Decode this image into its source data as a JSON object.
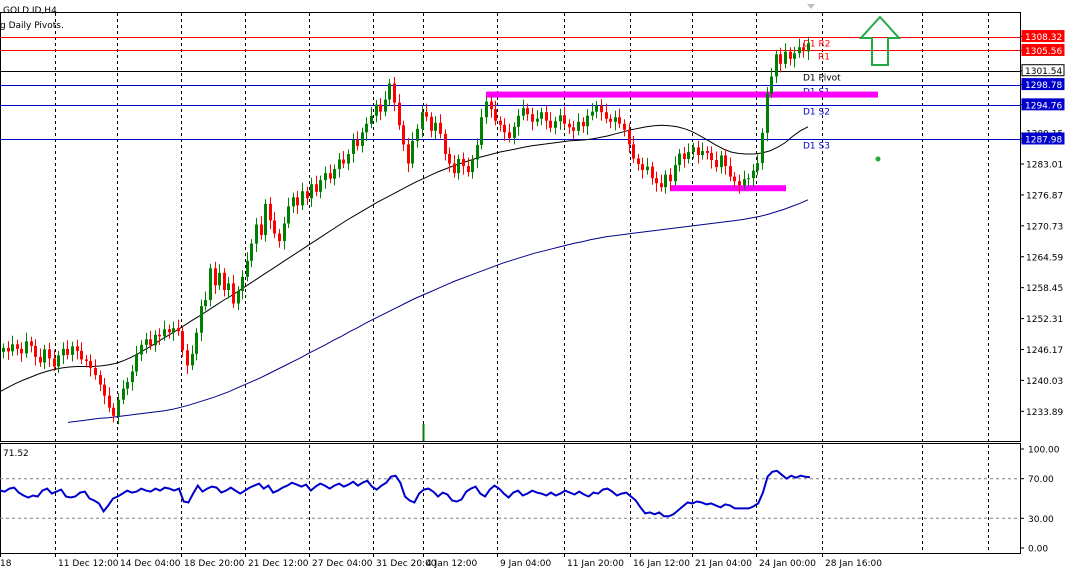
{
  "window": {
    "symbol_label": "GOLD.ID,H4",
    "indicator_label": "g Daily Pivots."
  },
  "colors": {
    "bull": "#008000",
    "bear": "#ff0000",
    "ma_fast": "#000000",
    "ma_slow": "#00008b",
    "pivot_resistance": "#ff0000",
    "pivot_support": "#0000cd",
    "pivot": "#000000",
    "zone": "#ff00ff",
    "rsi": "#0000cd",
    "arrow": "#22aa44",
    "dot": "#22aa44"
  },
  "chart_data": [
    {
      "type": "candlestick",
      "title": "GOLD.ID,H4",
      "ylim": [
        1228,
        1313
      ],
      "yticks": [
        "1308.32",
        "1305.56",
        "1301.54",
        "1298.78",
        "1294.76",
        "1289.15",
        "1287.98",
        "1283.01",
        "1276.87",
        "1270.73",
        "1264.59",
        "1258.45",
        "1252.31",
        "1246.17",
        "1240.03",
        "1233.89"
      ],
      "xticks": [
        "18",
        "11 Dec 12:00",
        "14 Dec 04:00",
        "18 Dec 20:00",
        "21 Dec 12:00",
        "27 Dec 04:00",
        "31 Dec 20:00",
        "4 Jan 12:00",
        "9 Jan 04:00",
        "11 Jan 20:00",
        "16 Jan 12:00",
        "21 Jan 04:00",
        "24 Jan 00:00",
        "28 Jan 16:00"
      ],
      "pivots": [
        {
          "name": "D1 R2",
          "value": 1308.32,
          "kind": "resistance"
        },
        {
          "name": "R1",
          "value": 1305.56,
          "kind": "resistance"
        },
        {
          "name": "D1 Pivot",
          "value": 1301.54,
          "kind": "pivot"
        },
        {
          "name": "D1 S1",
          "value": 1298.78,
          "kind": "support"
        },
        {
          "name": "D1 S2",
          "value": 1294.76,
          "kind": "support"
        },
        {
          "name": "D1 S3",
          "value": 1287.98,
          "kind": "support"
        }
      ],
      "zones": [
        {
          "from": "9 Jan 04:00",
          "to": "after 28 Jan 16:00",
          "value": 1296.8
        },
        {
          "from": "21 Jan 04:00",
          "to": "28 Jan 16:00",
          "value": 1278.2
        }
      ],
      "close": [
        1246.5,
        1245.8,
        1247.2,
        1246.3,
        1245.4,
        1247.8,
        1246.9,
        1244.7,
        1243.6,
        1246.2,
        1244.4,
        1242.8,
        1245.0,
        1246.3,
        1245.1,
        1246.8,
        1245.9,
        1244.2,
        1243.9,
        1242.5,
        1241.1,
        1239.2,
        1237.0,
        1234.6,
        1233.0,
        1236.2,
        1238.4,
        1239.7,
        1241.8,
        1245.2,
        1247.1,
        1248.2,
        1247.0,
        1249.1,
        1248.8,
        1250.2,
        1249.6,
        1250.4,
        1249.8,
        1246.0,
        1243.0,
        1245.3,
        1249.5,
        1254.8,
        1256.0,
        1262.3,
        1258.9,
        1261.4,
        1258.0,
        1259.3,
        1255.3,
        1257.8,
        1260.6,
        1263.8,
        1267.2,
        1271.0,
        1268.9,
        1275.1,
        1271.8,
        1269.2,
        1267.7,
        1271.2,
        1274.6,
        1276.4,
        1274.8,
        1277.6,
        1276.2,
        1279.0,
        1277.5,
        1279.8,
        1281.2,
        1280.1,
        1282.0,
        1283.9,
        1283.1,
        1285.0,
        1287.8,
        1286.6,
        1289.3,
        1291.0,
        1292.6,
        1294.8,
        1293.4,
        1295.8,
        1299.0,
        1295.2,
        1290.7,
        1286.9,
        1283.1,
        1287.6,
        1290.0,
        1293.3,
        1292.4,
        1289.6,
        1291.2,
        1289.0,
        1285.0,
        1283.1,
        1281.2,
        1284.0,
        1282.6,
        1281.4,
        1283.9,
        1286.8,
        1292.3,
        1295.4,
        1293.9,
        1291.6,
        1290.8,
        1289.3,
        1288.2,
        1290.4,
        1292.6,
        1294.1,
        1292.9,
        1291.4,
        1292.0,
        1293.3,
        1291.6,
        1290.2,
        1291.5,
        1292.7,
        1291.0,
        1290.3,
        1289.6,
        1291.4,
        1290.5,
        1292.6,
        1293.4,
        1294.6,
        1293.3,
        1292.0,
        1291.4,
        1292.3,
        1291.0,
        1289.8,
        1286.9,
        1284.1,
        1283.0,
        1281.8,
        1282.5,
        1280.2,
        1279.2,
        1278.4,
        1280.9,
        1279.6,
        1282.8,
        1285.1,
        1284.0,
        1285.4,
        1286.3,
        1284.8,
        1285.6,
        1285.2,
        1283.8,
        1282.4,
        1284.7,
        1282.6,
        1280.5,
        1279.6,
        1278.8,
        1280.0,
        1280.2,
        1281.7,
        1283.2,
        1289.2,
        1297.0,
        1300.4,
        1304.8,
        1302.9,
        1305.3,
        1303.9,
        1305.0,
        1306.2,
        1305.4,
        1307.0
      ],
      "ma_fast": [
        1237.8,
        1238.6,
        1239.4,
        1240.1,
        1240.7,
        1241.3,
        1241.8,
        1242.2,
        1242.5,
        1242.7,
        1242.8,
        1242.8,
        1242.8,
        1242.9,
        1243.1,
        1243.4,
        1243.9,
        1244.6,
        1245.4,
        1246.3,
        1247.2,
        1248.2,
        1249.1,
        1250.0,
        1251.0,
        1252.0,
        1252.9,
        1253.9,
        1254.9,
        1255.9,
        1256.8,
        1257.8,
        1258.8,
        1259.8,
        1260.8,
        1261.8,
        1262.8,
        1263.8,
        1264.8,
        1265.8,
        1266.8,
        1267.8,
        1268.8,
        1269.8,
        1270.8,
        1271.8,
        1272.7,
        1273.6,
        1274.5,
        1275.4,
        1276.2,
        1277.0,
        1277.8,
        1278.6,
        1279.4,
        1280.1,
        1280.8,
        1281.5,
        1282.1,
        1282.7,
        1283.2,
        1283.7,
        1284.2,
        1284.6,
        1285.0,
        1285.4,
        1285.7,
        1286.0,
        1286.3,
        1286.6,
        1286.8,
        1287.0,
        1287.2,
        1287.4,
        1287.6,
        1287.7,
        1287.8,
        1288.0,
        1288.3,
        1288.6,
        1289.0,
        1289.4,
        1289.8,
        1290.1,
        1290.4,
        1290.6,
        1290.7,
        1290.6,
        1290.4,
        1290.0,
        1289.4,
        1288.6,
        1287.7,
        1286.8,
        1286.0,
        1285.4,
        1285.1,
        1285.0,
        1285.0,
        1285.2,
        1285.6,
        1286.3,
        1287.2,
        1288.5,
        1289.6,
        1290.4
      ],
      "ma_slow": [
        1231.7,
        1231.9,
        1232.1,
        1232.3,
        1232.5,
        1232.6,
        1232.8,
        1233.0,
        1233.2,
        1233.4,
        1233.6,
        1233.8,
        1234.0,
        1234.3,
        1234.7,
        1235.1,
        1235.6,
        1236.1,
        1236.6,
        1237.2,
        1237.8,
        1238.5,
        1239.2,
        1239.9,
        1240.6,
        1241.4,
        1242.2,
        1243.0,
        1243.8,
        1244.6,
        1245.5,
        1246.3,
        1247.1,
        1248.0,
        1248.8,
        1249.7,
        1250.5,
        1251.4,
        1252.2,
        1253.0,
        1253.8,
        1254.6,
        1255.4,
        1256.2,
        1256.9,
        1257.6,
        1258.3,
        1259.0,
        1259.7,
        1260.3,
        1260.9,
        1261.5,
        1262.1,
        1262.7,
        1263.3,
        1263.8,
        1264.3,
        1264.8,
        1265.3,
        1265.7,
        1266.1,
        1266.5,
        1266.9,
        1267.3,
        1267.6,
        1268.0,
        1268.3,
        1268.6,
        1268.8,
        1269.0,
        1269.2,
        1269.4,
        1269.6,
        1269.8,
        1270.0,
        1270.2,
        1270.4,
        1270.6,
        1270.8,
        1271.0,
        1271.2,
        1271.4,
        1271.6,
        1271.8,
        1272.0,
        1272.3,
        1272.6,
        1273.0,
        1273.5,
        1274.0,
        1274.6,
        1275.2,
        1275.9
      ]
    },
    {
      "type": "line",
      "title": "71.52",
      "ylim": [
        0,
        100
      ],
      "yticks": [
        "100.00",
        "70.00",
        "30.00",
        "0.00"
      ],
      "levels": [
        70,
        30
      ],
      "values": [
        58,
        57,
        60,
        61,
        56,
        53,
        51,
        53,
        52,
        58,
        60,
        55,
        57,
        59,
        52,
        51,
        52,
        56,
        57,
        50,
        48,
        45,
        37,
        43,
        50,
        52,
        55,
        58,
        56,
        57,
        60,
        58,
        57,
        60,
        58,
        61,
        60,
        58,
        60,
        47,
        46,
        55,
        63,
        57,
        60,
        62,
        61,
        56,
        58,
        61,
        58,
        55,
        58,
        61,
        63,
        65,
        60,
        63,
        56,
        58,
        61,
        63,
        66,
        64,
        62,
        64,
        58,
        62,
        65,
        63,
        60,
        63,
        65,
        62,
        64,
        67,
        63,
        66,
        68,
        62,
        59,
        63,
        66,
        72,
        73,
        66,
        52,
        48,
        46,
        55,
        59,
        60,
        57,
        52,
        56,
        54,
        48,
        47,
        49,
        57,
        60,
        62,
        55,
        52,
        59,
        63,
        60,
        55,
        51,
        56,
        58,
        53,
        55,
        58,
        56,
        55,
        53,
        56,
        53,
        55,
        58,
        56,
        54,
        57,
        54,
        52,
        56,
        55,
        59,
        60,
        57,
        53,
        55,
        56,
        52,
        48,
        41,
        35,
        36,
        34,
        36,
        32,
        32,
        34,
        38,
        42,
        46,
        45,
        47,
        46,
        44,
        45,
        43,
        41,
        44,
        43,
        40,
        40,
        40,
        40,
        42,
        45,
        56,
        72,
        77,
        78,
        74,
        70,
        73,
        71,
        73,
        72,
        71.52
      ],
      "value_label": "71.52"
    }
  ]
}
